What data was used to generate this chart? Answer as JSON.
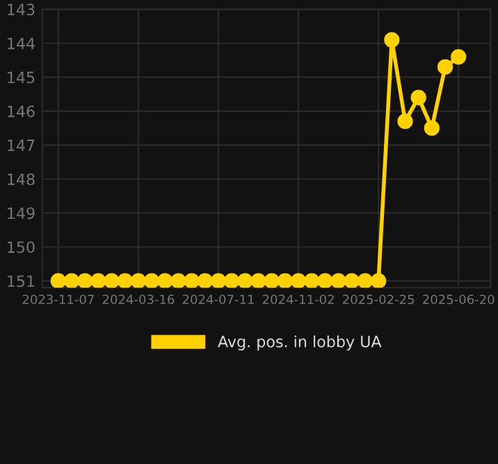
{
  "chart_data": {
    "type": "line",
    "categories": [
      "2023-11-07",
      null,
      null,
      null,
      null,
      null,
      "2024-03-16",
      null,
      null,
      null,
      null,
      null,
      "2024-07-11",
      null,
      null,
      null,
      null,
      null,
      "2024-11-02",
      null,
      null,
      null,
      null,
      null,
      "2025-02-25",
      null,
      null,
      null,
      null,
      null,
      "2025-06-20"
    ],
    "series": [
      {
        "name": "Avg. pos. in lobby UA",
        "color": "#ffd100",
        "values": [
          151,
          151,
          151,
          151,
          151,
          151,
          151,
          151,
          151,
          151,
          151,
          151,
          151,
          151,
          151,
          151,
          151,
          151,
          151,
          151,
          151,
          151,
          151,
          151,
          151,
          143.9,
          146.3,
          145.6,
          146.5,
          144.7,
          144.4
        ]
      }
    ],
    "ylim": [
      151.2,
      143
    ],
    "yticks": [
      143,
      144,
      145,
      146,
      147,
      148,
      149,
      150,
      151
    ],
    "grid": true,
    "legend": "bottom",
    "marker": "circle",
    "line_style": "solid"
  }
}
